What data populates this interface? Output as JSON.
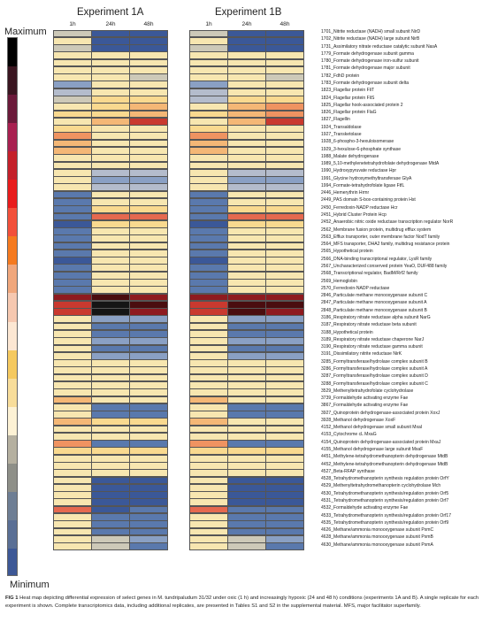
{
  "experiments": [
    {
      "title": "Experiment 1A",
      "times": [
        "1h",
        "24h",
        "48h"
      ]
    },
    {
      "title": "Experiment 1B",
      "times": [
        "1h",
        "24h",
        "48h"
      ]
    }
  ],
  "scale": {
    "max_label": "Maximum",
    "min_label": "Minimum"
  },
  "palette": [
    "#3b5898",
    "#5a79ad",
    "#8aa0c4",
    "#b4bccc",
    "#cdc9b8",
    "#f7e6b0",
    "#f9d98f",
    "#f4b776",
    "#ef9361",
    "#e5694f",
    "#c9392f",
    "#8e1a1f",
    "#4a0d0f",
    "#151515"
  ],
  "scale_colors": [
    "#000000",
    "#3a1520",
    "#6b1a3a",
    "#a82050",
    "#c4202a",
    "#e81c1c",
    "#f2503a",
    "#f57a1f",
    "#f0a77c",
    "#f6c8b0",
    "#fce7d3",
    "#f5c95f",
    "#f8dd9a",
    "#fdf2d5",
    "#b5b0a0",
    "#8e8f88",
    "#6e7e94",
    "#5a6f95",
    "#3d5896"
  ],
  "chart_data": {
    "type": "heatmap",
    "title": "",
    "columns": [
      "Experiment 1A 1h",
      "Experiment 1A 24h",
      "Experiment 1A 48h",
      "Experiment 1B 1h",
      "Experiment 1B 24h",
      "Experiment 1B 48h"
    ],
    "value_range": [
      0,
      13
    ],
    "rows": [
      {
        "gene": "1701_Nitrite reductase (NADH) small subunit NirD",
        "values": [
          4,
          0,
          0,
          4,
          0,
          0
        ]
      },
      {
        "gene": "1702_Nitrite reductase (NADH) large subunit NirB",
        "values": [
          5,
          0,
          0,
          5,
          0,
          0
        ]
      },
      {
        "gene": "1731_Assimilatory nitrate reductase catalytic subunit NasA",
        "values": [
          4,
          0,
          0,
          4,
          0,
          0
        ]
      },
      {
        "gene": "1779_Formate dehydrogenase subunit gamma",
        "values": [
          5,
          5,
          5,
          5,
          5,
          5
        ]
      },
      {
        "gene": "1780_Formate dehydrogenase iron-sulfur subunit",
        "values": [
          5,
          5,
          5,
          5,
          5,
          5
        ]
      },
      {
        "gene": "1781_Formate dehydrogenase major subunit",
        "values": [
          5,
          5,
          5,
          5,
          5,
          5
        ]
      },
      {
        "gene": "1782_FdhD protein",
        "values": [
          5,
          5,
          4,
          5,
          5,
          4
        ]
      },
      {
        "gene": "1783_Formate dehydrogenase subunit delta",
        "values": [
          2,
          5,
          5,
          2,
          5,
          5
        ]
      },
      {
        "gene": "1823_Flagellar protein FliT",
        "values": [
          3,
          5,
          5,
          3,
          5,
          5
        ]
      },
      {
        "gene": "1824_Flagellar protein FliS",
        "values": [
          4,
          6,
          6,
          3,
          6,
          6
        ]
      },
      {
        "gene": "1825_Flagellar hook-associated protein 2",
        "values": [
          5,
          6,
          7,
          5,
          7,
          8
        ]
      },
      {
        "gene": "1826_Flagellar protein FlaG",
        "values": [
          6,
          6,
          7,
          6,
          7,
          8
        ]
      },
      {
        "gene": "1827_Flagellin",
        "values": [
          5,
          7,
          10,
          5,
          7,
          10
        ]
      },
      {
        "gene": "1924_Transaldolase",
        "values": [
          6,
          5,
          5,
          6,
          5,
          5
        ]
      },
      {
        "gene": "1927_Transketolase",
        "values": [
          8,
          5,
          5,
          8,
          5,
          5
        ]
      },
      {
        "gene": "1928_6-phospho-3-hexuloisomerase",
        "values": [
          7,
          5,
          5,
          7,
          5,
          5
        ]
      },
      {
        "gene": "1929_3-hexulose-6-phosphate synthase",
        "values": [
          7,
          5,
          5,
          7,
          5,
          5
        ]
      },
      {
        "gene": "1988_Malate dehydrogenase",
        "values": [
          5,
          5,
          5,
          5,
          5,
          5
        ]
      },
      {
        "gene": "1989_5,10-methylenetetrahydrofolate dehydrogenase MtdA",
        "values": [
          5,
          5,
          5,
          5,
          5,
          5
        ]
      },
      {
        "gene": "1990_Hydroxypyruvate reductase Hpr",
        "values": [
          5,
          3,
          3,
          5,
          3,
          3
        ]
      },
      {
        "gene": "1991_Glycine hydroxymethyltransferase GlyA",
        "values": [
          5,
          2,
          2,
          5,
          2,
          2
        ]
      },
      {
        "gene": "1994_Formate-tetrahydrofolate ligase FtfL",
        "values": [
          5,
          3,
          3,
          5,
          3,
          3
        ]
      },
      {
        "gene": "2446_Hemerythrin Hrmr",
        "values": [
          1,
          5,
          5,
          1,
          5,
          5
        ]
      },
      {
        "gene": "2449_PAS domain S-box-containing protein Hst",
        "values": [
          1,
          5,
          5,
          1,
          5,
          5
        ]
      },
      {
        "gene": "2450_Ferredoxin-NADP reductase Hcr",
        "values": [
          1,
          6,
          6,
          1,
          6,
          6
        ]
      },
      {
        "gene": "2451_Hybrid Cluster Protein Hcp",
        "values": [
          1,
          9,
          9,
          1,
          9,
          9
        ]
      },
      {
        "gene": "2452_Anaerobic nitric oxide reductase transcription regulator NorR",
        "values": [
          0,
          6,
          6,
          0,
          6,
          6
        ]
      },
      {
        "gene": "2562_Membrane fusion protein, multidrug efflux system",
        "values": [
          1,
          5,
          5,
          1,
          5,
          5
        ]
      },
      {
        "gene": "2563_Efflux transporter, outer membrane factor NodT family",
        "values": [
          1,
          5,
          5,
          1,
          5,
          5
        ]
      },
      {
        "gene": "2564_MFS transporter, DHA2 family, multidrug resistance protein",
        "values": [
          1,
          5,
          5,
          1,
          5,
          5
        ]
      },
      {
        "gene": "2565_Hypothetical protein",
        "values": [
          1,
          5,
          5,
          1,
          5,
          5
        ]
      },
      {
        "gene": "2566_DNA-binding transcriptional regulator, LysR family",
        "values": [
          0,
          5,
          5,
          0,
          5,
          5
        ]
      },
      {
        "gene": "2567_Uncharacterized conserved protein YeaO, DUF488 family",
        "values": [
          1,
          5,
          5,
          1,
          5,
          5
        ]
      },
      {
        "gene": "2568_Transcriptional regulator, BadM/Rrf2 family",
        "values": [
          1,
          5,
          5,
          1,
          5,
          5
        ]
      },
      {
        "gene": "2569_Hemoglobin",
        "values": [
          1,
          5,
          5,
          1,
          5,
          5
        ]
      },
      {
        "gene": "2570_Ferredoxin-NADP reductase",
        "values": [
          1,
          5,
          5,
          1,
          5,
          5
        ]
      },
      {
        "gene": "2846_Particulate methane monooxygenase subunit C",
        "values": [
          11,
          12,
          11,
          11,
          11,
          11
        ]
      },
      {
        "gene": "2847_Particulate methane monooxygenase subunit A",
        "values": [
          10,
          13,
          12,
          10,
          12,
          12
        ]
      },
      {
        "gene": "2848_Particulate methane monooxygenase subunit B",
        "values": [
          10,
          13,
          11,
          10,
          12,
          11
        ]
      },
      {
        "gene": "3186_Respiratory nitrate reductase alpha subunit NarG",
        "values": [
          5,
          2,
          2,
          5,
          2,
          2
        ]
      },
      {
        "gene": "3187_Respiratory nitrate reductase beta subunit",
        "values": [
          5,
          1,
          1,
          5,
          1,
          1
        ]
      },
      {
        "gene": "3188_Hypothetical protein",
        "values": [
          5,
          1,
          1,
          5,
          1,
          1
        ]
      },
      {
        "gene": "3189_Respiratory nitrate reductase chaperone NarJ",
        "values": [
          5,
          2,
          2,
          5,
          2,
          2
        ]
      },
      {
        "gene": "3190_Respiratory nitrate reductase gamma subunit",
        "values": [
          5,
          1,
          1,
          5,
          1,
          1
        ]
      },
      {
        "gene": "3191_Dissimilatory nitrite reductase NirK",
        "values": [
          5,
          2,
          2,
          5,
          2,
          2
        ]
      },
      {
        "gene": "3285_Formyltransferase/hydrolase complex subunit B",
        "values": [
          5,
          5,
          5,
          5,
          5,
          5
        ]
      },
      {
        "gene": "3286_Formyltransferase/hydrolase complex subunit A",
        "values": [
          5,
          5,
          5,
          5,
          5,
          5
        ]
      },
      {
        "gene": "3287_Formyltransferase/hydrolase complex subunit D",
        "values": [
          5,
          5,
          5,
          5,
          5,
          5
        ]
      },
      {
        "gene": "3288_Formyltransferase/hydrolase complex subunit C",
        "values": [
          5,
          5,
          5,
          5,
          5,
          5
        ]
      },
      {
        "gene": "3529_Methenyltetrahydrofolate cyclohydrolase",
        "values": [
          5,
          5,
          5,
          5,
          5,
          5
        ]
      },
      {
        "gene": "3739_Formaldehyde activating enzyme Fae",
        "values": [
          7,
          5,
          5,
          7,
          5,
          5
        ]
      },
      {
        "gene": "3867_Formaldehyde activating enzyme Fae",
        "values": [
          5,
          1,
          1,
          5,
          1,
          1
        ]
      },
      {
        "gene": "3927_Quinoprotein dehydrogenase-associated protein XoxJ",
        "values": [
          5,
          1,
          1,
          5,
          1,
          1
        ]
      },
      {
        "gene": "3928_Methanol dehydrogenase XoxF",
        "values": [
          7,
          6,
          6,
          7,
          5,
          5
        ]
      },
      {
        "gene": "4152_Methanol dehydrogenase small subunit MxaI",
        "values": [
          5,
          5,
          5,
          5,
          5,
          5
        ]
      },
      {
        "gene": "4153_Cytochrome cL MxaG",
        "values": [
          5,
          5,
          5,
          5,
          5,
          5
        ]
      },
      {
        "gene": "4154_Quinoprotein dehydrogenase-associated protein MxaJ",
        "values": [
          8,
          1,
          1,
          8,
          1,
          1
        ]
      },
      {
        "gene": "4155_Methanol dehydrogenase large subunit MxaF",
        "values": [
          6,
          6,
          6,
          6,
          6,
          6
        ]
      },
      {
        "gene": "4451_Methylene-tetrahydromethanopterin dehydrogenase MtdB",
        "values": [
          5,
          5,
          5,
          5,
          5,
          5
        ]
      },
      {
        "gene": "4452_Methylene-tetrahydromethanopterin dehydrogenase MtdB",
        "values": [
          5,
          5,
          5,
          5,
          5,
          5
        ]
      },
      {
        "gene": "4527_Beta-RFAP synthase",
        "values": [
          5,
          5,
          5,
          5,
          5,
          5
        ]
      },
      {
        "gene": "4528_Tetrahydromethanopterin synthesis regulation protein OrfY",
        "values": [
          5,
          0,
          0,
          5,
          0,
          0
        ]
      },
      {
        "gene": "4529_Methenyltetrahydromethanopterin cyclohydrolase Mch",
        "values": [
          5,
          0,
          0,
          5,
          0,
          0
        ]
      },
      {
        "gene": "4530_Tetrahydromethanopterin synthesis/regulation protein Orf5",
        "values": [
          5,
          0,
          0,
          5,
          0,
          0
        ]
      },
      {
        "gene": "4531_Tetrahydromethanopterin synthesis/regulation protein Orf7",
        "values": [
          5,
          0,
          0,
          5,
          0,
          0
        ]
      },
      {
        "gene": "4532_Formaldehyde activating enzyme Fae",
        "values": [
          9,
          0,
          1,
          9,
          1,
          1
        ]
      },
      {
        "gene": "4533_Tetrahydromethanopterin synthesis/regulation protein Orf17",
        "values": [
          5,
          1,
          1,
          5,
          1,
          1
        ]
      },
      {
        "gene": "4535_Tetrahydromethanopterin synthesis/regulation protein Orf9",
        "values": [
          5,
          1,
          1,
          5,
          1,
          1
        ]
      },
      {
        "gene": "4626_Methane/ammonia monooxygenase subunit PxmC",
        "values": [
          5,
          1,
          1,
          5,
          1,
          1
        ]
      },
      {
        "gene": "4628_Methane/ammonia monooxygenase subunit PxmB",
        "values": [
          5,
          4,
          2,
          5,
          4,
          2
        ]
      },
      {
        "gene": "4630_Methane/ammonia monooxygenase subunit PxmA",
        "values": [
          5,
          4,
          1,
          5,
          4,
          1
        ]
      }
    ]
  },
  "caption": {
    "label": "FIG 1",
    "text": " Heat map depicting differential expression of select genes in M. tundripaludum 31/32 under oxic (1 h) and increasingly hypoxic (24 and 48 h) conditions (experiments 1A and B). A single replicate for each experiment is shown. Complete transcriptomics data, including additional replicates, are presented in Tables S1 and S2 in the supplemental material. MFS, major facilitator superfamily."
  }
}
